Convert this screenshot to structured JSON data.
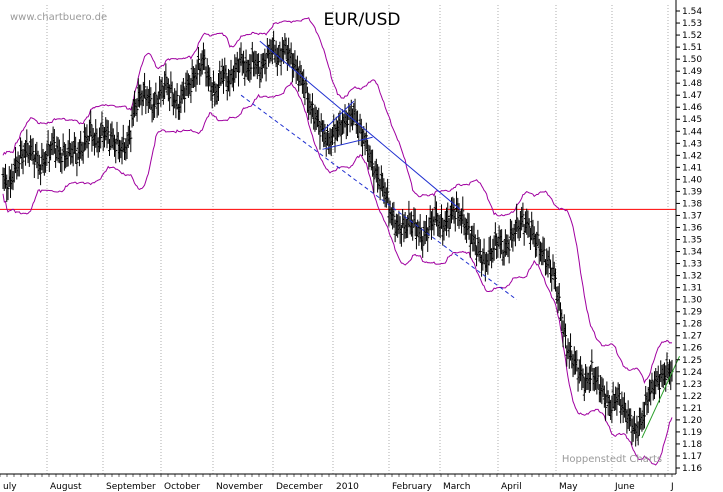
{
  "watermark": "www.chartbuero.de",
  "credit": "Hoppenstedt Charts",
  "colors": {
    "price": "#000000",
    "bands": "#a000a0",
    "trendline": "#2030d0",
    "support": "#ff0000",
    "green_line": "#2aa02a",
    "grid": "#7a7a7a"
  },
  "chart_data": {
    "type": "line",
    "title": "EUR/USD",
    "style": "ohlc-bars with bollinger bands and trendlines",
    "grid": "vertical dotted at month boundaries",
    "legend": "none",
    "ylim": [
      1.155,
      1.545
    ],
    "y_axis_side": "right",
    "y_ticks": [
      1.16,
      1.17,
      1.18,
      1.19,
      1.2,
      1.21,
      1.22,
      1.23,
      1.24,
      1.25,
      1.26,
      1.27,
      1.28,
      1.29,
      1.3,
      1.31,
      1.32,
      1.33,
      1.34,
      1.35,
      1.36,
      1.37,
      1.38,
      1.39,
      1.4,
      1.41,
      1.42,
      1.43,
      1.44,
      1.45,
      1.46,
      1.47,
      1.48,
      1.49,
      1.5,
      1.51,
      1.52,
      1.53,
      1.54
    ],
    "x_months": [
      "July",
      "August",
      "September",
      "October",
      "November",
      "December",
      "2010",
      "February",
      "March",
      "April",
      "May",
      "June",
      "July"
    ],
    "x_month_labels_shown": [
      "uly",
      "August",
      "September",
      "October",
      "November",
      "December",
      "2010",
      "February",
      "March",
      "April",
      "May",
      "June",
      "J"
    ],
    "price_path": [
      [
        0,
        1.4
      ],
      [
        1,
        1.395
      ],
      [
        2,
        1.41
      ],
      [
        3,
        1.42
      ],
      [
        4,
        1.425
      ],
      [
        5,
        1.42
      ],
      [
        6,
        1.41
      ],
      [
        7,
        1.42
      ],
      [
        8,
        1.43
      ],
      [
        9,
        1.42
      ],
      [
        10,
        1.42
      ],
      [
        11,
        1.425
      ],
      [
        12,
        1.42
      ],
      [
        13,
        1.43
      ],
      [
        14,
        1.44
      ],
      [
        15,
        1.43
      ],
      [
        16,
        1.44
      ],
      [
        17,
        1.435
      ],
      [
        18,
        1.43
      ],
      [
        19,
        1.425
      ],
      [
        20,
        1.43
      ],
      [
        21,
        1.46
      ],
      [
        22,
        1.47
      ],
      [
        23,
        1.47
      ],
      [
        24,
        1.46
      ],
      [
        25,
        1.47
      ],
      [
        26,
        1.48
      ],
      [
        27,
        1.47
      ],
      [
        28,
        1.46
      ],
      [
        29,
        1.475
      ],
      [
        30,
        1.48
      ],
      [
        31,
        1.49
      ],
      [
        32,
        1.5
      ],
      [
        33,
        1.48
      ],
      [
        34,
        1.47
      ],
      [
        35,
        1.49
      ],
      [
        36,
        1.48
      ],
      [
        37,
        1.49
      ],
      [
        38,
        1.5
      ],
      [
        39,
        1.49
      ],
      [
        40,
        1.5
      ],
      [
        41,
        1.49
      ],
      [
        42,
        1.5
      ],
      [
        43,
        1.51
      ],
      [
        44,
        1.5
      ],
      [
        45,
        1.51
      ],
      [
        46,
        1.5
      ],
      [
        47,
        1.49
      ],
      [
        48,
        1.48
      ],
      [
        49,
        1.46
      ],
      [
        50,
        1.45
      ],
      [
        51,
        1.44
      ],
      [
        52,
        1.43
      ],
      [
        53,
        1.44
      ],
      [
        54,
        1.445
      ],
      [
        55,
        1.45
      ],
      [
        56,
        1.455
      ],
      [
        57,
        1.44
      ],
      [
        58,
        1.43
      ],
      [
        59,
        1.41
      ],
      [
        60,
        1.4
      ],
      [
        61,
        1.39
      ],
      [
        62,
        1.37
      ],
      [
        63,
        1.36
      ],
      [
        64,
        1.36
      ],
      [
        65,
        1.365
      ],
      [
        66,
        1.36
      ],
      [
        67,
        1.35
      ],
      [
        68,
        1.36
      ],
      [
        69,
        1.37
      ],
      [
        70,
        1.36
      ],
      [
        71,
        1.365
      ],
      [
        72,
        1.375
      ],
      [
        73,
        1.37
      ],
      [
        74,
        1.36
      ],
      [
        75,
        1.35
      ],
      [
        76,
        1.34
      ],
      [
        77,
        1.33
      ],
      [
        78,
        1.34
      ],
      [
        79,
        1.35
      ],
      [
        80,
        1.34
      ],
      [
        81,
        1.35
      ],
      [
        82,
        1.36
      ],
      [
        83,
        1.365
      ],
      [
        84,
        1.36
      ],
      [
        85,
        1.35
      ],
      [
        86,
        1.34
      ],
      [
        87,
        1.33
      ],
      [
        88,
        1.32
      ],
      [
        89,
        1.29
      ],
      [
        90,
        1.26
      ],
      [
        91,
        1.25
      ],
      [
        92,
        1.24
      ],
      [
        93,
        1.23
      ],
      [
        94,
        1.24
      ],
      [
        95,
        1.23
      ],
      [
        96,
        1.22
      ],
      [
        97,
        1.21
      ],
      [
        98,
        1.22
      ],
      [
        99,
        1.21
      ],
      [
        100,
        1.2
      ],
      [
        101,
        1.19
      ],
      [
        102,
        1.2
      ],
      [
        103,
        1.22
      ],
      [
        104,
        1.23
      ],
      [
        105,
        1.235
      ],
      [
        106,
        1.24
      ]
    ],
    "support_level": 1.375,
    "trendlines": [
      {
        "kind": "solid",
        "from": [
          41,
          1.515
        ],
        "to": [
          73,
          1.375
        ]
      },
      {
        "kind": "dashed",
        "from": [
          38,
          1.47
        ],
        "to": [
          82,
          1.3
        ]
      },
      {
        "kind": "channel-upper",
        "from": [
          51,
          1.44
        ],
        "to": [
          56,
          1.465
        ]
      },
      {
        "kind": "channel-lower",
        "from": [
          51,
          1.425
        ],
        "to": [
          59,
          1.435
        ]
      },
      {
        "kind": "green",
        "from": [
          102,
          1.185
        ],
        "to": [
          108,
          1.253
        ]
      }
    ]
  }
}
